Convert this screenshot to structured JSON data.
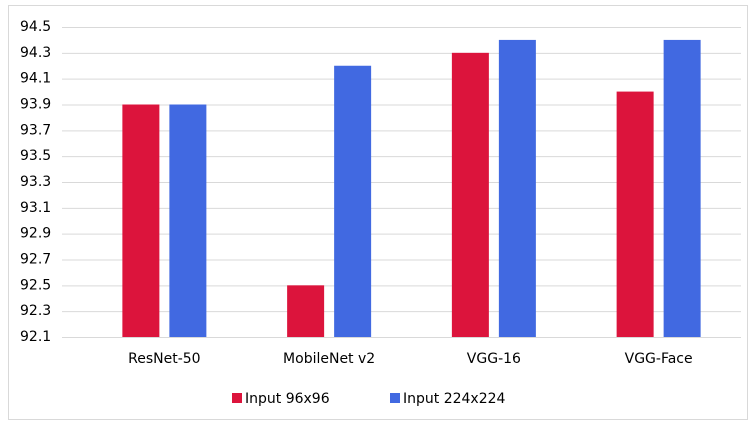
{
  "chart_data": {
    "type": "bar",
    "categories": [
      "ResNet-50",
      "MobileNet v2",
      "VGG-16",
      "VGG-Face"
    ],
    "series": [
      {
        "name": "Input 96x96",
        "color": "#dc143c",
        "values": [
          93.9,
          92.5,
          94.3,
          94.0
        ]
      },
      {
        "name": "Input 224x224",
        "color": "#4169e1",
        "values": [
          93.9,
          94.2,
          94.4,
          94.4
        ]
      }
    ],
    "ylim": [
      92.1,
      94.5
    ],
    "yticks": [
      92.1,
      92.3,
      92.5,
      92.7,
      92.9,
      93.1,
      93.3,
      93.5,
      93.7,
      93.9,
      94.1,
      94.3,
      94.5
    ],
    "grid": true,
    "legend": "bottom"
  }
}
